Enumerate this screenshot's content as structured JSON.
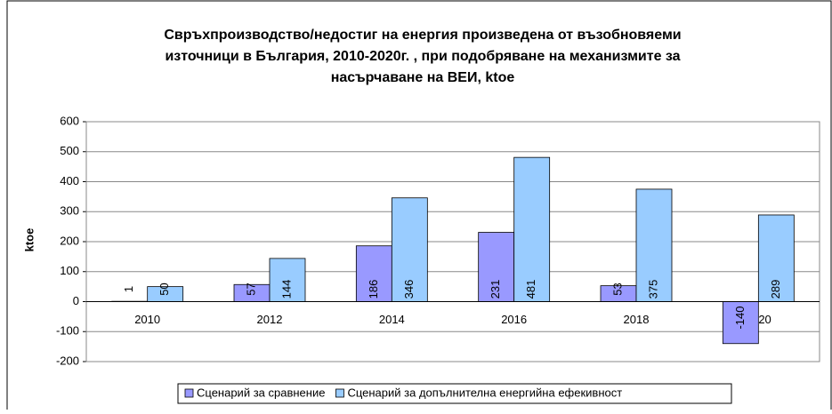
{
  "chart_data": {
    "type": "bar",
    "title": [
      "Свръхпроизводство/недостиг на енергия произведена от възобновяеми",
      "източници в България, 2010-2020г. , при подобряване на механизмите за",
      "насърчаване на ВЕИ, ktoe"
    ],
    "y_label": "ktoe",
    "categories": [
      "2010",
      "2012",
      "2014",
      "2016",
      "2018",
      "2020"
    ],
    "series": [
      {
        "name": "Сценарий за сравнение",
        "color": "#9999ff",
        "values": [
          1,
          57,
          186,
          231,
          53,
          -140
        ]
      },
      {
        "name": "Сценарий за допълнителна енергийна ефекивност",
        "color": "#99ccff",
        "values": [
          50,
          144,
          346,
          481,
          375,
          289
        ]
      }
    ],
    "ylim": [
      -200,
      600
    ],
    "yticks": [
      -200,
      -100,
      0,
      100,
      200,
      300,
      400,
      500,
      600
    ],
    "grid": true,
    "legend": "bottom"
  }
}
